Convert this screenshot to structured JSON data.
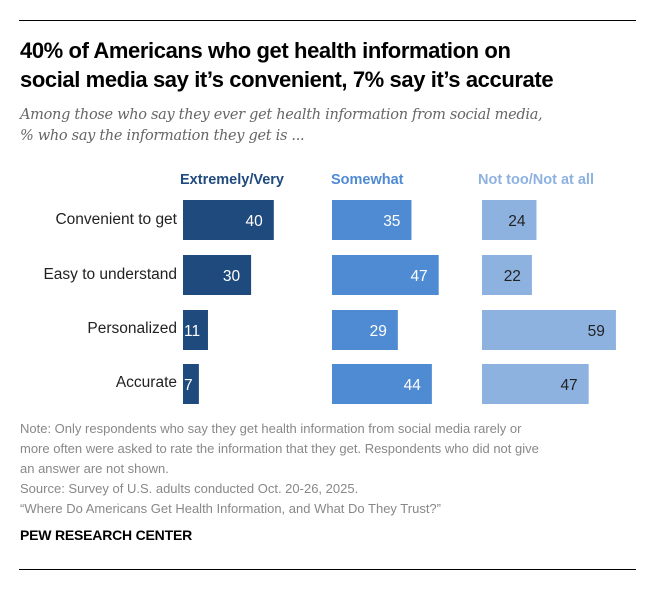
{
  "header": {
    "title_line1": "40% of Americans who get health information on",
    "title_line2": "social media say it’s convenient, 7% say it’s accurate",
    "subtitle_line1": "Among those who say they ever get health information from social media,",
    "subtitle_line2": "% who say the information they get is ..."
  },
  "chart_data": {
    "type": "bar",
    "orientation": "horizontal",
    "layout": "small-multiples",
    "title": "40% of Americans who get health information on social media say it’s convenient, 7% say it’s accurate",
    "subtitle": "Among those who say they ever get health information from social media, % who say the information they get is ...",
    "categories": [
      "Convenient to get",
      "Easy to understand",
      "Personalized",
      "Accurate"
    ],
    "series": [
      {
        "name": "Extremely/Very",
        "values": [
          40,
          30,
          11,
          7
        ],
        "color": "#1f4a7e",
        "label_color": "#ffffff"
      },
      {
        "name": "Somewhat",
        "values": [
          35,
          47,
          29,
          44
        ],
        "color": "#4f8bd2",
        "label_color": "#ffffff"
      },
      {
        "name": "Not too/Not at all",
        "values": [
          24,
          22,
          59,
          47
        ],
        "color": "#8db2e0",
        "label_color": "#222222"
      }
    ],
    "xlim": [
      0,
      100
    ],
    "grid": false,
    "legend": "top (column headers)"
  },
  "footer": {
    "note_line1": "Note: Only respondents who say they get health information from social media rarely or",
    "note_line2": "more often were asked to rate the information that they get. Respondents who did not give",
    "note_line3": "an answer are not shown.",
    "source": "Source: Survey of U.S. adults conducted Oct. 20-26, 2025.",
    "report": "“Where Do Americans Get Health Information, and What Do They Trust?”",
    "brand": "PEW RESEARCH CENTER"
  }
}
